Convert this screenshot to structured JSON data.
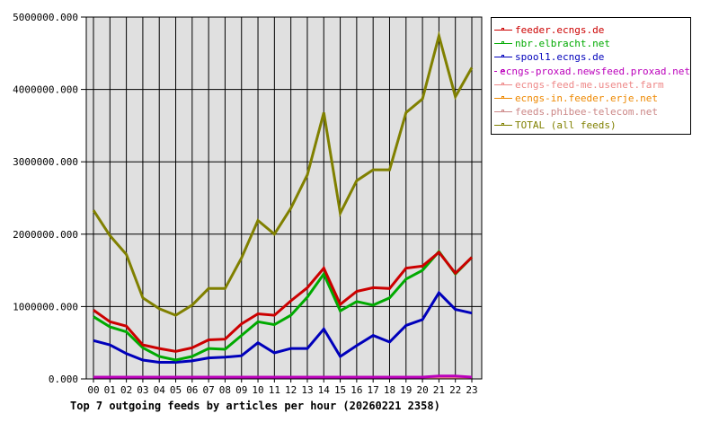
{
  "chart_data": {
    "type": "line",
    "title": "Top 7 outgoing feeds by articles per hour (20260221 2358)",
    "xlabel": "",
    "ylabel": "",
    "ylim": [
      0,
      5000000
    ],
    "grid": true,
    "legend_position": "right",
    "y_ticks": [
      "0.000",
      "1000000.000",
      "2000000.000",
      "3000000.000",
      "4000000.000",
      "5000000.000"
    ],
    "categories": [
      "00",
      "01",
      "02",
      "03",
      "04",
      "05",
      "06",
      "07",
      "08",
      "09",
      "10",
      "11",
      "12",
      "13",
      "14",
      "15",
      "16",
      "17",
      "18",
      "19",
      "20",
      "21",
      "22",
      "23"
    ],
    "series": [
      {
        "name": "feeder.ecngs.de",
        "color": "#cc0000",
        "values": [
          950000,
          790000,
          730000,
          470000,
          420000,
          380000,
          430000,
          540000,
          550000,
          760000,
          900000,
          880000,
          1080000,
          1260000,
          1530000,
          1030000,
          1210000,
          1260000,
          1250000,
          1530000,
          1560000,
          1750000,
          1460000,
          1680000
        ]
      },
      {
        "name": "nbr.elbracht.net",
        "color": "#00aa00",
        "values": [
          860000,
          720000,
          650000,
          430000,
          310000,
          260000,
          310000,
          420000,
          410000,
          600000,
          790000,
          750000,
          880000,
          1130000,
          1450000,
          940000,
          1070000,
          1020000,
          1120000,
          1380000,
          1500000,
          1760000,
          1450000,
          1680000
        ]
      },
      {
        "name": "spool1.ecngs.de",
        "color": "#0000bb",
        "values": [
          530000,
          470000,
          350000,
          260000,
          230000,
          230000,
          250000,
          290000,
          300000,
          320000,
          500000,
          360000,
          420000,
          420000,
          690000,
          310000,
          460000,
          600000,
          510000,
          740000,
          820000,
          1190000,
          960000,
          910000
        ]
      },
      {
        "name": "ecngs-proxad.newsfeed.proxad.net",
        "color": "#bb00bb",
        "values": [
          20000,
          20000,
          20000,
          20000,
          20000,
          20000,
          20000,
          20000,
          20000,
          20000,
          20000,
          20000,
          20000,
          20000,
          20000,
          20000,
          20000,
          20000,
          20000,
          20000,
          20000,
          40000,
          40000,
          20000
        ]
      },
      {
        "name": "ecngs-feed-me.usenet.farm",
        "color": "#ee8888",
        "values": [
          0,
          0,
          0,
          0,
          0,
          0,
          0,
          0,
          0,
          0,
          20000,
          20000,
          0,
          0,
          0,
          0,
          0,
          0,
          0,
          0,
          20000,
          20000,
          20000,
          0
        ]
      },
      {
        "name": "ecngs-in.feeder.erje.net",
        "color": "#ee8800",
        "values": [
          0,
          0,
          0,
          0,
          0,
          0,
          0,
          0,
          0,
          0,
          0,
          0,
          0,
          0,
          0,
          0,
          0,
          0,
          0,
          0,
          0,
          20000,
          20000,
          0
        ]
      },
      {
        "name": "feeds.phibee-telecom.net",
        "color": "#cc8888",
        "values": [
          10000,
          10000,
          10000,
          10000,
          10000,
          10000,
          10000,
          10000,
          10000,
          10000,
          10000,
          10000,
          10000,
          10000,
          10000,
          10000,
          10000,
          10000,
          10000,
          10000,
          10000,
          10000,
          10000,
          10000
        ]
      },
      {
        "name": "TOTAL (all feeds)",
        "color": "#808000",
        "values": [
          2330000,
          1980000,
          1720000,
          1120000,
          970000,
          880000,
          1020000,
          1250000,
          1250000,
          1670000,
          2190000,
          2000000,
          2360000,
          2820000,
          3680000,
          2290000,
          2740000,
          2890000,
          2890000,
          3680000,
          3870000,
          4740000,
          3900000,
          4300000
        ]
      }
    ]
  },
  "legend": {
    "items": [
      {
        "label": "feeder.ecngs.de",
        "color": "#cc0000"
      },
      {
        "label": "nbr.elbracht.net",
        "color": "#00aa00"
      },
      {
        "label": "spool1.ecngs.de",
        "color": "#0000bb"
      },
      {
        "label": "ecngs-proxad.newsfeed.proxad.net",
        "color": "#bb00bb"
      },
      {
        "label": "ecngs-feed-me.usenet.farm",
        "color": "#ee8888"
      },
      {
        "label": "ecngs-in.feeder.erje.net",
        "color": "#ee8800"
      },
      {
        "label": "feeds.phibee-telecom.net",
        "color": "#cc8888"
      },
      {
        "label": "TOTAL (all feeds)",
        "color": "#808000"
      }
    ]
  },
  "caption": "Top 7 outgoing feeds by articles per hour (20260221 2358)",
  "colors": {
    "plot_bg": "#e0e0e0",
    "grid": "#000000",
    "background": "#ffffff"
  }
}
